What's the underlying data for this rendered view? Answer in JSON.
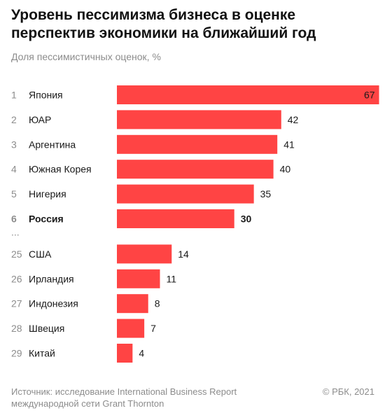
{
  "title": "Уровень пессимизма бизнеса в оценке перспектив экономики на ближайший год",
  "subtitle": "Доля пессимистичных оценок, %",
  "chart_data": {
    "type": "bar",
    "orientation": "horizontal",
    "bar_color": "#ff4444",
    "highlight_category": "Россия",
    "gap_marker": "...",
    "rows": [
      {
        "rank": "1",
        "category": "Япония",
        "value": 67
      },
      {
        "rank": "2",
        "category": "ЮАР",
        "value": 42
      },
      {
        "rank": "3",
        "category": "Аргентина",
        "value": 41
      },
      {
        "rank": "4",
        "category": "Южная Корея",
        "value": 40
      },
      {
        "rank": "5",
        "category": "Нигерия",
        "value": 35
      },
      {
        "rank": "6",
        "category": "Россия",
        "value": 30
      },
      {
        "rank": "25",
        "category": "США",
        "value": 14
      },
      {
        "rank": "26",
        "category": "Ирландия",
        "value": 11
      },
      {
        "rank": "27",
        "category": "Индонезия",
        "value": 8
      },
      {
        "rank": "28",
        "category": "Швеция",
        "value": 7
      },
      {
        "rank": "29",
        "category": "Китай",
        "value": 4
      }
    ]
  },
  "footer": {
    "source": "Источник: исследование International Business Report международной сети Grant Thornton",
    "copyright": "© РБК, 2021"
  }
}
